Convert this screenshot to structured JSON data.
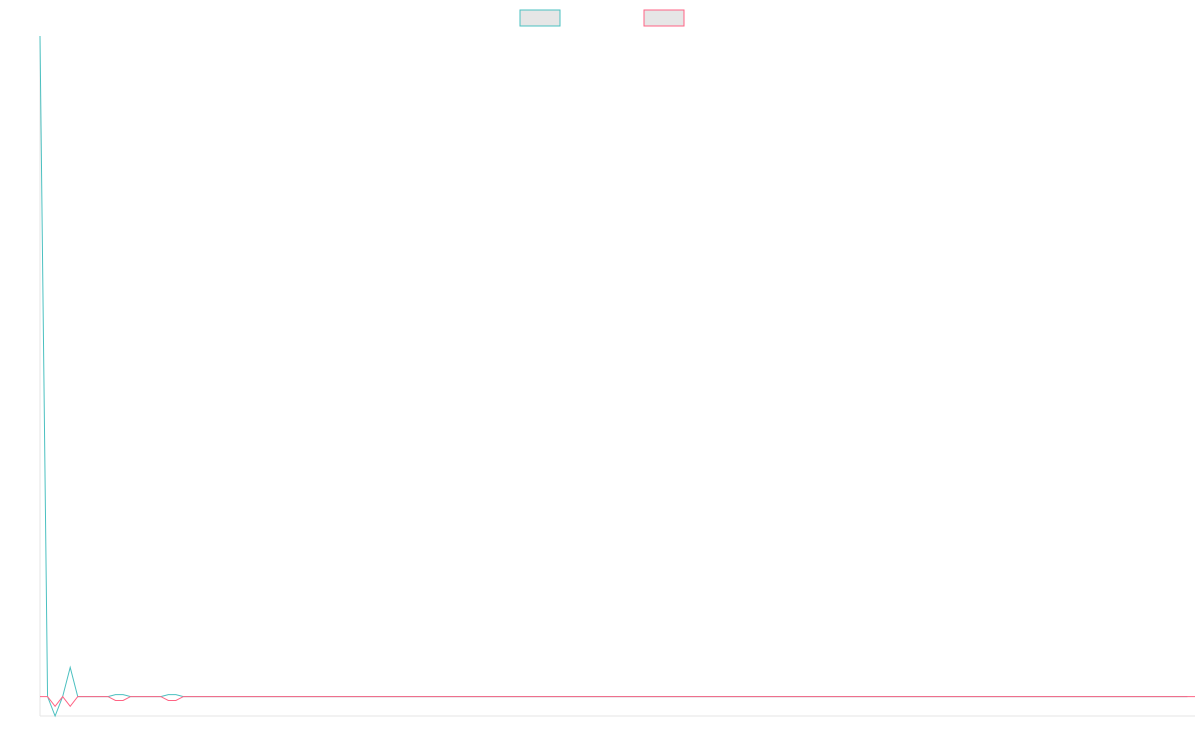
{
  "chart_data": {
    "type": "line",
    "title": "",
    "xlabel": "",
    "ylabel": "",
    "grid": false,
    "legend": {
      "placement": "top-center"
    },
    "ylim": [
      -1,
      34
    ],
    "series": [
      {
        "name": "",
        "color": "#4bc0c0",
        "legend_fill": "#e6e6e6",
        "values": [
          34,
          0,
          -1,
          0,
          1.5,
          0,
          0,
          0,
          0,
          0,
          0.1,
          0.1,
          0,
          0,
          0,
          0,
          0,
          0.1,
          0.1,
          0,
          0,
          0,
          0,
          0,
          0,
          0,
          0,
          0,
          0,
          0,
          0,
          0,
          0,
          0,
          0,
          0,
          0,
          0,
          0,
          0,
          0,
          0,
          0,
          0,
          0,
          0,
          0,
          0,
          0,
          0,
          0,
          0,
          0,
          0,
          0,
          0,
          0,
          0,
          0,
          0,
          0,
          0,
          0,
          0,
          0,
          0,
          0,
          0,
          0,
          0,
          0,
          0,
          0,
          0,
          0,
          0,
          0,
          0,
          0,
          0,
          0,
          0,
          0,
          0,
          0,
          0,
          0,
          0,
          0,
          0,
          0,
          0,
          0,
          0,
          0,
          0,
          0,
          0,
          0,
          0,
          0,
          0,
          0,
          0,
          0,
          0,
          0,
          0,
          0,
          0,
          0,
          0,
          0,
          0,
          0,
          0,
          0,
          0,
          0,
          0,
          0,
          0,
          0,
          0,
          0,
          0,
          0,
          0,
          0,
          0,
          0,
          0,
          0,
          0,
          0,
          0,
          0,
          0,
          0,
          0,
          0,
          0,
          0,
          0,
          0,
          0,
          0,
          0,
          0,
          0,
          0,
          0,
          0
        ]
      },
      {
        "name": "",
        "color": "#ff6384",
        "legend_fill": "#e6e6e6",
        "values": [
          0,
          0,
          -0.5,
          0,
          -0.5,
          0,
          0,
          0,
          0,
          0,
          -0.2,
          -0.2,
          0,
          0,
          0,
          0,
          0,
          -0.2,
          -0.2,
          0,
          0,
          0,
          0,
          0,
          0,
          0,
          0,
          0,
          0,
          0,
          0,
          0,
          0,
          0,
          0,
          0,
          0,
          0,
          0,
          0,
          0,
          0,
          0,
          0,
          0,
          0,
          0,
          0,
          0,
          0,
          0,
          0,
          0,
          0,
          0,
          0,
          0,
          0,
          0,
          0,
          0,
          0,
          0,
          0,
          0,
          0,
          0,
          0,
          0,
          0,
          0,
          0,
          0,
          0,
          0,
          0,
          0,
          0,
          0,
          0,
          0,
          0,
          0,
          0,
          0,
          0,
          0,
          0,
          0,
          0,
          0,
          0,
          0,
          0,
          0,
          0,
          0,
          0,
          0,
          0,
          0,
          0,
          0,
          0,
          0,
          0,
          0,
          0,
          0,
          0,
          0,
          0,
          0,
          0,
          0,
          0,
          0,
          0,
          0,
          0,
          0,
          0,
          0,
          0,
          0,
          0,
          0,
          0,
          0,
          0,
          0,
          0,
          0,
          0,
          0,
          0,
          0,
          0,
          0,
          0,
          0,
          0,
          0,
          0,
          0,
          0,
          0,
          0,
          0,
          0,
          0,
          0,
          0,
          0
        ]
      }
    ]
  }
}
